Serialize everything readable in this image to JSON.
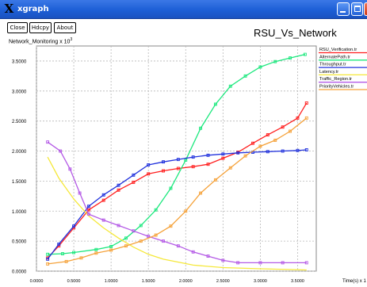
{
  "window": {
    "title": "xgraph",
    "app_icon_glyph": "X",
    "controls": {
      "minimize_icon": "minimize-icon",
      "maximize_icon": "maximize-icon",
      "close_icon": "close-icon"
    }
  },
  "toolbar": {
    "close_label": "Close",
    "hdcpy_label": "Hdcpy",
    "about_label": "About"
  },
  "graph": {
    "title": "RSU_Vs_Network",
    "y_label": "Network_Monitoring x 10",
    "y_label_exponent": "3",
    "x_label": "Time(s) x 1"
  },
  "chart_data": {
    "type": "line",
    "title": "RSU_Vs_Network",
    "ylabel": "Network_Monitoring x 10^3",
    "xlabel": "Time(s) x 1",
    "grid": true,
    "legend_placement": "right",
    "xlim": [
      0,
      3.75
    ],
    "ylim": [
      0,
      3.75
    ],
    "x_ticks": [
      "0.0000",
      "0.5000",
      "1.0000",
      "1.5000",
      "2.0000",
      "2.5000",
      "3.0000",
      "3.5000"
    ],
    "y_ticks": [
      "0.0000",
      "0.5000",
      "1.0000",
      "1.5000",
      "2.0000",
      "2.5000",
      "3.0000",
      "3.5000"
    ],
    "series": [
      {
        "name": "RSU_Verification.tr",
        "color": "#ff1f1f",
        "marker": true,
        "points": [
          [
            0.15,
            0.22
          ],
          [
            0.3,
            0.42
          ],
          [
            0.5,
            0.72
          ],
          [
            0.7,
            1.02
          ],
          [
            0.9,
            1.18
          ],
          [
            1.1,
            1.35
          ],
          [
            1.3,
            1.48
          ],
          [
            1.5,
            1.62
          ],
          [
            1.7,
            1.67
          ],
          [
            1.9,
            1.71
          ],
          [
            2.1,
            1.74
          ],
          [
            2.3,
            1.78
          ],
          [
            2.5,
            1.88
          ],
          [
            2.7,
            1.98
          ],
          [
            2.9,
            2.13
          ],
          [
            3.1,
            2.27
          ],
          [
            3.3,
            2.4
          ],
          [
            3.5,
            2.55
          ],
          [
            3.62,
            2.8
          ]
        ]
      },
      {
        "name": "AlternatePath.tr",
        "color": "#1de87e",
        "marker": true,
        "points": [
          [
            0.15,
            0.28
          ],
          [
            0.35,
            0.29
          ],
          [
            0.5,
            0.31
          ],
          [
            0.8,
            0.36
          ],
          [
            1.0,
            0.41
          ],
          [
            1.2,
            0.55
          ],
          [
            1.4,
            0.76
          ],
          [
            1.6,
            1.02
          ],
          [
            1.8,
            1.38
          ],
          [
            2.0,
            1.85
          ],
          [
            2.2,
            2.38
          ],
          [
            2.4,
            2.78
          ],
          [
            2.6,
            3.08
          ],
          [
            2.8,
            3.25
          ],
          [
            3.0,
            3.4
          ],
          [
            3.2,
            3.49
          ],
          [
            3.4,
            3.55
          ],
          [
            3.6,
            3.61
          ]
        ]
      },
      {
        "name": "Throughput.tr",
        "color": "#2233dd",
        "marker": true,
        "points": [
          [
            0.15,
            0.2
          ],
          [
            0.3,
            0.45
          ],
          [
            0.5,
            0.75
          ],
          [
            0.7,
            1.08
          ],
          [
            0.9,
            1.27
          ],
          [
            1.1,
            1.43
          ],
          [
            1.3,
            1.6
          ],
          [
            1.5,
            1.77
          ],
          [
            1.7,
            1.82
          ],
          [
            1.9,
            1.86
          ],
          [
            2.1,
            1.9
          ],
          [
            2.3,
            1.93
          ],
          [
            2.5,
            1.95
          ],
          [
            2.7,
            1.97
          ],
          [
            2.9,
            1.98
          ],
          [
            3.1,
            1.99
          ],
          [
            3.3,
            2.0
          ],
          [
            3.5,
            2.01
          ],
          [
            3.62,
            2.02
          ]
        ]
      },
      {
        "name": "Latency.tr",
        "color": "#f5e83a",
        "marker": false,
        "points": [
          [
            0.15,
            1.9
          ],
          [
            0.3,
            1.55
          ],
          [
            0.5,
            1.2
          ],
          [
            0.7,
            0.92
          ],
          [
            0.9,
            0.72
          ],
          [
            1.1,
            0.55
          ],
          [
            1.3,
            0.4
          ],
          [
            1.5,
            0.28
          ],
          [
            1.7,
            0.2
          ],
          [
            1.9,
            0.15
          ],
          [
            2.1,
            0.1
          ],
          [
            2.5,
            0.06
          ],
          [
            3.0,
            0.04
          ],
          [
            3.62,
            0.02
          ]
        ]
      },
      {
        "name": "Traffic_Region.tr",
        "color": "#b45ae6",
        "marker": true,
        "points": [
          [
            0.15,
            2.15
          ],
          [
            0.32,
            2.0
          ],
          [
            0.45,
            1.7
          ],
          [
            0.58,
            1.3
          ],
          [
            0.7,
            0.95
          ],
          [
            0.9,
            0.85
          ],
          [
            1.1,
            0.76
          ],
          [
            1.3,
            0.67
          ],
          [
            1.5,
            0.58
          ],
          [
            1.7,
            0.5
          ],
          [
            1.9,
            0.42
          ],
          [
            2.1,
            0.32
          ],
          [
            2.3,
            0.25
          ],
          [
            2.5,
            0.18
          ],
          [
            2.7,
            0.14
          ],
          [
            3.0,
            0.14
          ],
          [
            3.3,
            0.14
          ],
          [
            3.62,
            0.14
          ]
        ]
      },
      {
        "name": "PriorityVehicles.tr",
        "color": "#f5a23a",
        "marker": true,
        "points": [
          [
            0.15,
            0.12
          ],
          [
            0.4,
            0.16
          ],
          [
            0.6,
            0.22
          ],
          [
            0.8,
            0.3
          ],
          [
            1.0,
            0.35
          ],
          [
            1.2,
            0.42
          ],
          [
            1.4,
            0.5
          ],
          [
            1.6,
            0.6
          ],
          [
            1.8,
            0.75
          ],
          [
            2.0,
            1.0
          ],
          [
            2.2,
            1.3
          ],
          [
            2.4,
            1.52
          ],
          [
            2.6,
            1.72
          ],
          [
            2.8,
            1.92
          ],
          [
            3.0,
            2.08
          ],
          [
            3.2,
            2.18
          ],
          [
            3.4,
            2.33
          ],
          [
            3.62,
            2.55
          ]
        ]
      }
    ]
  }
}
